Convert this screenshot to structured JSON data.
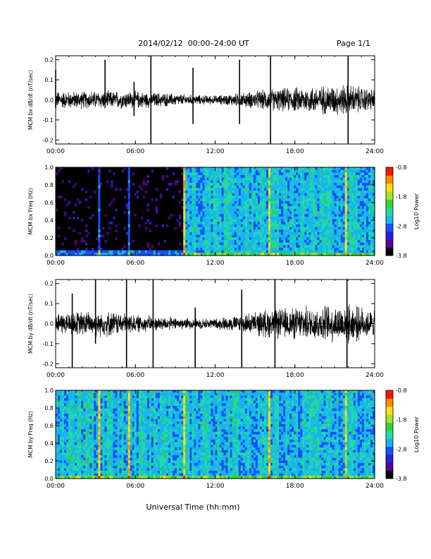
{
  "header": {
    "title": "2014/02/12  00:00–24:00 UT",
    "page": "Page 1/1"
  },
  "footer": {
    "xlabel": "Universal Time (hh:mm)"
  },
  "colorbar": {
    "label": "Log10 Power",
    "ticks": [
      "-0.8",
      "-1.8",
      "-2.8",
      "-3.8"
    ],
    "range": [
      -3.8,
      -0.8
    ],
    "colors": [
      "#000000",
      "#5b0096",
      "#2a1fd6",
      "#1650ff",
      "#18b4f0",
      "#22d8a8",
      "#34d23a",
      "#a6e02a",
      "#ffe014",
      "#ff8a00",
      "#ff1400"
    ]
  },
  "chart_data": [
    {
      "type": "line",
      "ylabel": "MCM bx dB/dt (nT/sec)",
      "xlabel": "",
      "xlim": [
        "00:00",
        "24:00"
      ],
      "ylim": [
        -0.22,
        0.22
      ],
      "x_ticks": [
        "00:00",
        "06:00",
        "12:00",
        "18:00",
        "24:00"
      ],
      "y_ticks": [
        "0.2",
        "0.1",
        "0.0",
        "-0.1",
        "-0.2"
      ],
      "series": [
        {
          "envelope_hours": [
            0,
            2,
            4,
            6,
            8,
            10,
            12,
            14,
            16,
            18,
            20,
            22,
            24
          ],
          "envelope_amplitude": [
            0.05,
            0.05,
            0.05,
            0.05,
            0.04,
            0.03,
            0.025,
            0.04,
            0.06,
            0.07,
            0.08,
            0.09,
            0.06
          ],
          "spikes": [
            {
              "time": "00:00",
              "ymin": -0.04,
              "ymax": 0.15
            },
            {
              "time": "03:43",
              "ymin": -0.04,
              "ymax": 0.2
            },
            {
              "time": "05:54",
              "ymin": -0.08,
              "ymax": 0.09
            },
            {
              "time": "07:10",
              "ymin": -0.22,
              "ymax": 0.22
            },
            {
              "time": "10:20",
              "ymin": -0.12,
              "ymax": 0.16
            },
            {
              "time": "13:50",
              "ymin": -0.12,
              "ymax": 0.2
            },
            {
              "time": "16:10",
              "ymin": -0.22,
              "ymax": 0.22
            },
            {
              "time": "22:00",
              "ymin": -0.22,
              "ymax": 0.22
            }
          ]
        }
      ]
    },
    {
      "type": "heatmap",
      "ylabel": "MCM bx Freq (Hz)",
      "xlim": [
        "00:00",
        "24:00"
      ],
      "ylim": [
        0.0,
        1.0
      ],
      "x_ticks": [
        "00:00",
        "06:00",
        "12:00",
        "18:00",
        "24:00"
      ],
      "y_ticks": [
        "1.0",
        "0.8",
        "0.6",
        "0.4",
        "0.2",
        "0.0"
      ],
      "quiet_interval": [
        "00:00",
        "09:40"
      ],
      "active_interval": [
        "09:40",
        "24:00"
      ],
      "enhanced_bands": [
        "03:15",
        "05:30",
        "09:40",
        "16:05",
        "21:50"
      ]
    },
    {
      "type": "line",
      "ylabel": "MCM by dB/dt (nT/sec)",
      "xlabel": "",
      "xlim": [
        "00:00",
        "24:00"
      ],
      "ylim": [
        -0.22,
        0.22
      ],
      "x_ticks": [
        "00:00",
        "06:00",
        "12:00",
        "18:00",
        "24:00"
      ],
      "y_ticks": [
        "0.2",
        "0.1",
        "0.0",
        "-0.1",
        "-0.2"
      ],
      "series": [
        {
          "envelope_hours": [
            0,
            2,
            4,
            6,
            8,
            10,
            12,
            14,
            16,
            18,
            20,
            22,
            24
          ],
          "envelope_amplitude": [
            0.06,
            0.07,
            0.07,
            0.05,
            0.04,
            0.03,
            0.03,
            0.05,
            0.08,
            0.09,
            0.1,
            0.11,
            0.07
          ],
          "spikes": [
            {
              "time": "01:15",
              "ymin": -0.22,
              "ymax": 0.15
            },
            {
              "time": "03:00",
              "ymin": -0.1,
              "ymax": 0.22
            },
            {
              "time": "05:20",
              "ymin": -0.22,
              "ymax": 0.22
            },
            {
              "time": "07:20",
              "ymin": -0.22,
              "ymax": 0.22
            },
            {
              "time": "10:30",
              "ymin": -0.22,
              "ymax": 0.08
            },
            {
              "time": "14:00",
              "ymin": -0.22,
              "ymax": 0.17
            },
            {
              "time": "16:30",
              "ymin": -0.22,
              "ymax": 0.22
            },
            {
              "time": "21:55",
              "ymin": -0.22,
              "ymax": 0.22
            }
          ]
        }
      ]
    },
    {
      "type": "heatmap",
      "ylabel": "MCM by Freq (Hz)",
      "xlim": [
        "00:00",
        "24:00"
      ],
      "ylim": [
        0.0,
        1.0
      ],
      "x_ticks": [
        "00:00",
        "06:00",
        "12:00",
        "18:00",
        "24:00"
      ],
      "y_ticks": [
        "1.0",
        "0.8",
        "0.6",
        "0.4",
        "0.2",
        "0.0"
      ],
      "quiet_interval": [],
      "active_interval": [
        "00:00",
        "24:00"
      ],
      "enhanced_bands": [
        "03:15",
        "05:30",
        "09:40",
        "16:05",
        "21:50"
      ]
    }
  ]
}
